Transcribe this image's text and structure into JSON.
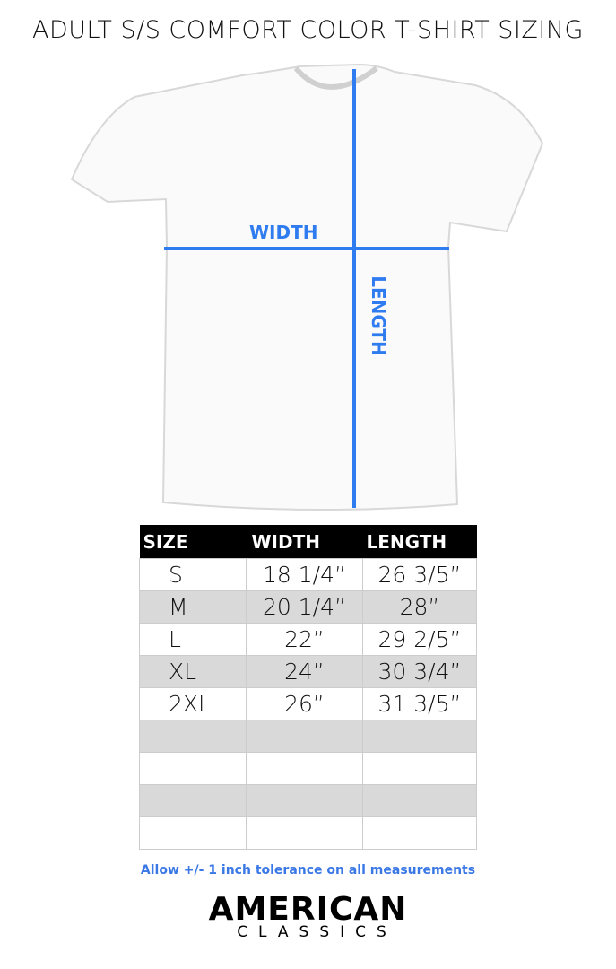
{
  "title": "ADULT S/S COMFORT COLOR T-SHIRT SIZING",
  "diagram": {
    "width_label": "WIDTH",
    "length_label": "LENGTH",
    "line_color": "#2f7bf0"
  },
  "table": {
    "headers": [
      "SIZE",
      "WIDTH",
      "LENGTH"
    ],
    "rows": [
      [
        "S",
        "18 1/4”",
        "26 3/5”"
      ],
      [
        "M",
        "20 1/4”",
        "28”"
      ],
      [
        "L",
        "22”",
        "29 2/5”"
      ],
      [
        "XL",
        "24”",
        "30 3/4”"
      ],
      [
        "2XL",
        "26”",
        "31 3/5”"
      ],
      [
        "",
        "",
        ""
      ],
      [
        "",
        "",
        ""
      ],
      [
        "",
        "",
        ""
      ],
      [
        "",
        "",
        ""
      ]
    ]
  },
  "note": "Allow +/- 1 inch tolerance on all measurements",
  "logo": {
    "line1": "AMERICAN",
    "line2": "CLASSICS"
  }
}
